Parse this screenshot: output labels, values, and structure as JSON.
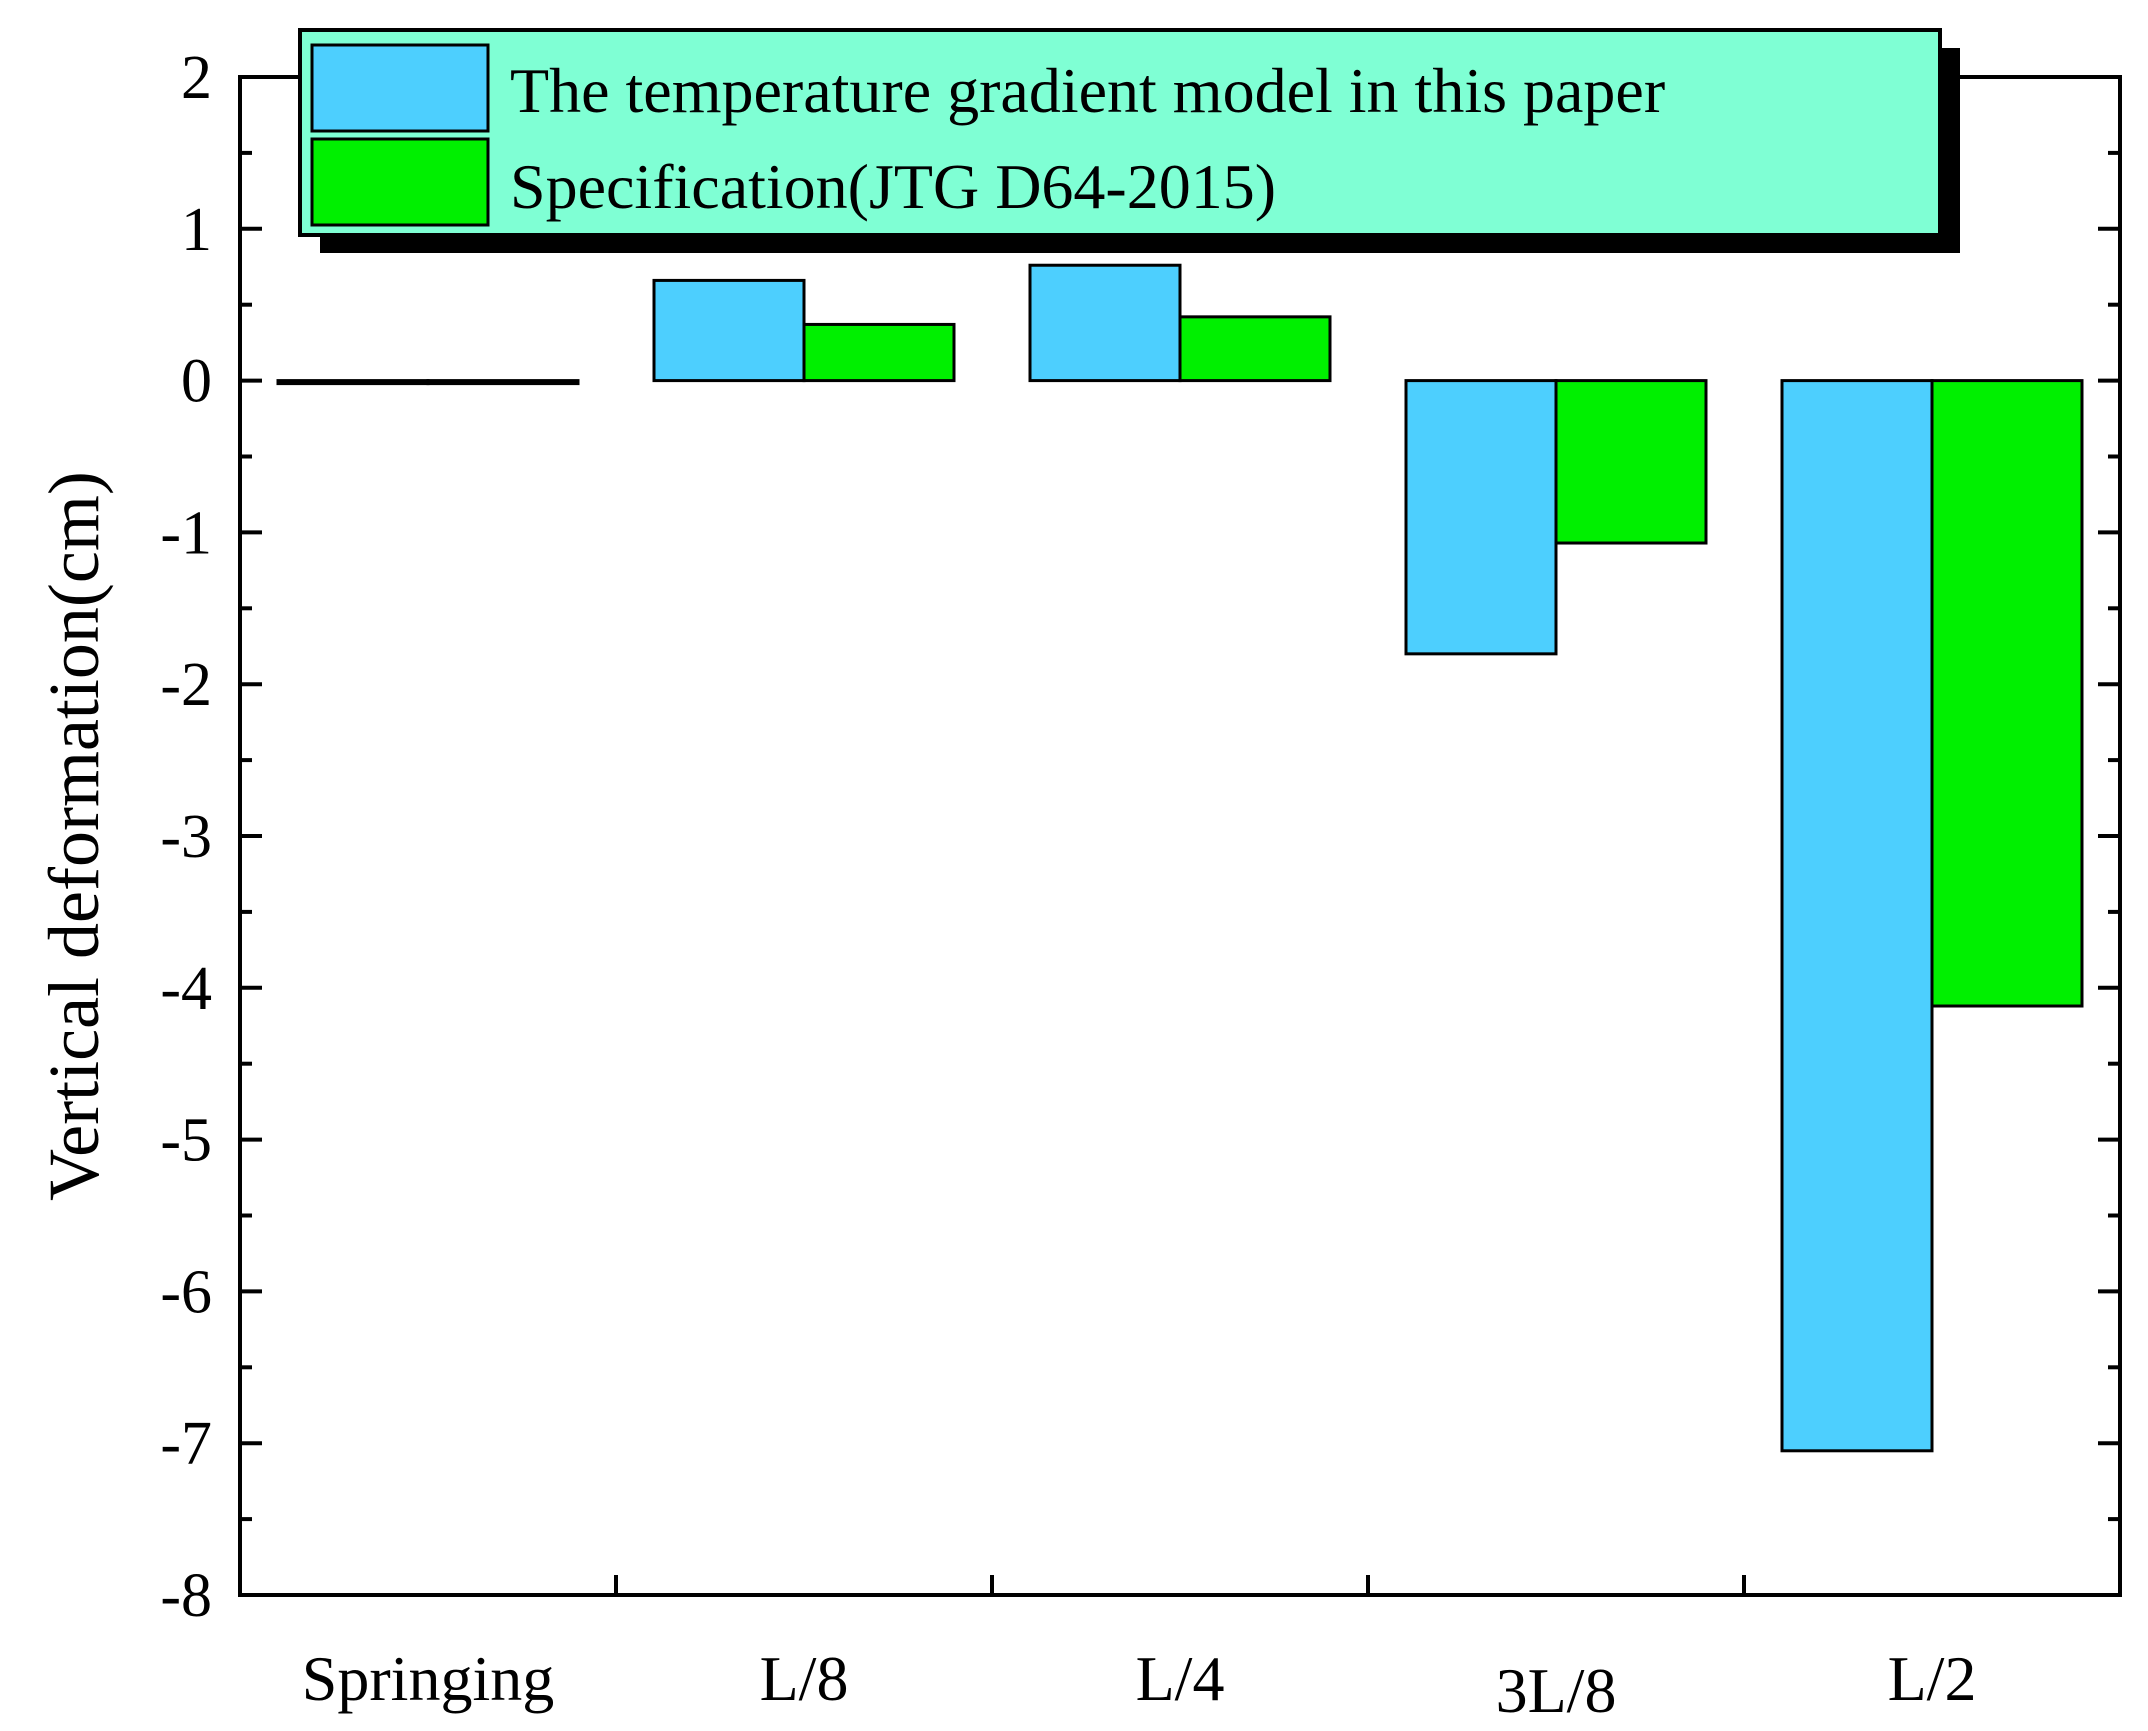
{
  "chart_data": {
    "type": "bar",
    "categories": [
      "Springing",
      "L/8",
      "L/4",
      "3L/8",
      "L/2"
    ],
    "series": [
      {
        "name": "The temperature gradient model in this paper",
        "color": "#4dcffe",
        "values": [
          0.0,
          0.66,
          0.76,
          -1.8,
          -7.05
        ]
      },
      {
        "name": "Specification(JTG D64-2015)",
        "color": "#00f000",
        "values": [
          0.0,
          0.37,
          0.42,
          -1.07,
          -4.12
        ]
      }
    ],
    "xlabel": "",
    "ylabel": "Vertical deformation(cm)",
    "ylim": [
      -8,
      2
    ],
    "yticks": [
      -8,
      -7,
      -6,
      -5,
      -4,
      -3,
      -2,
      -1,
      0,
      1,
      2
    ],
    "grid": false,
    "legend_position": "top",
    "legend_background": "#7fffd4"
  }
}
